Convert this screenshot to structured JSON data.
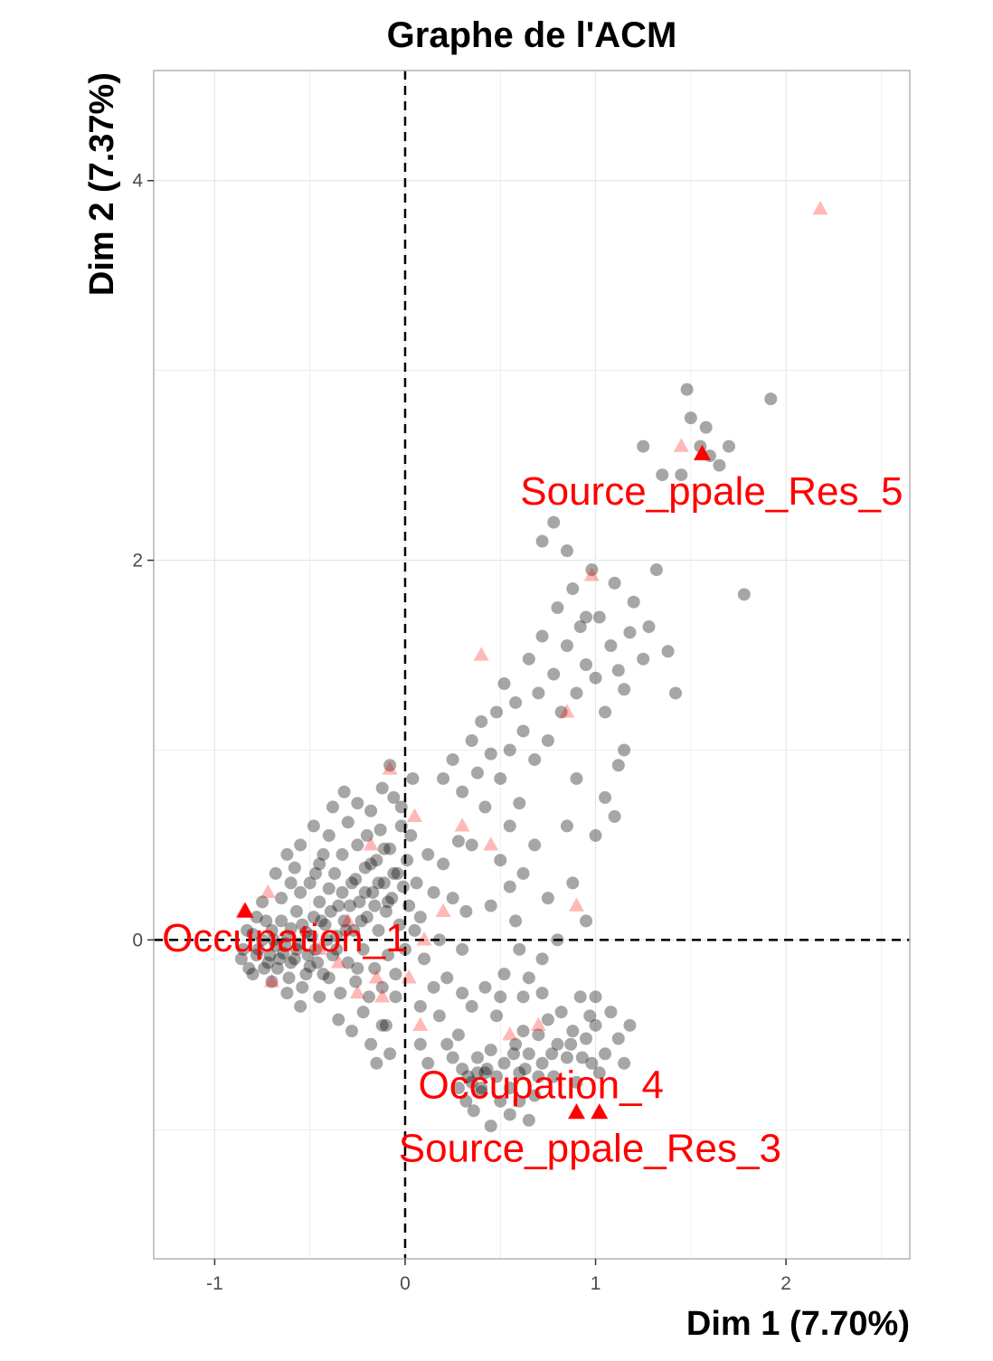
{
  "chart_data": {
    "type": "scatter",
    "title": "Graphe de l'ACM",
    "xlabel": "Dim 1 (7.70%)",
    "ylabel": "Dim 2 (7.37%)",
    "xlim": [
      -1.32,
      2.65
    ],
    "ylim": [
      -1.68,
      4.58
    ],
    "xticks": [
      -1,
      0,
      1,
      2
    ],
    "yticks": [
      0,
      2,
      4
    ],
    "grid": true,
    "reference_lines": {
      "x": 0,
      "y": 0,
      "style": "dashed"
    },
    "colors": {
      "individuals": "#000000",
      "categories": "#ff0000",
      "highlighted_categories": "#ff0000"
    },
    "individuals": [
      [
        -0.85,
        -0.05
      ],
      [
        -0.8,
        0.03
      ],
      [
        -0.78,
        -0.08
      ],
      [
        -0.75,
        0.0
      ],
      [
        -0.72,
        -0.12
      ],
      [
        -0.7,
        0.05
      ],
      [
        -0.68,
        -0.03
      ],
      [
        -0.67,
        -0.15
      ],
      [
        -0.65,
        0.1
      ],
      [
        -0.64,
        -0.07
      ],
      [
        -0.62,
        0.02
      ],
      [
        -0.61,
        -0.2
      ],
      [
        -0.6,
        0.06
      ],
      [
        -0.58,
        -0.1
      ],
      [
        -0.57,
        0.15
      ],
      [
        -0.56,
        -0.02
      ],
      [
        -0.55,
        0.25
      ],
      [
        -0.54,
        -0.25
      ],
      [
        -0.52,
        0.04
      ],
      [
        -0.5,
        0.3
      ],
      [
        -0.5,
        -0.14
      ],
      [
        -0.48,
        0.12
      ],
      [
        -0.47,
        -0.05
      ],
      [
        -0.45,
        0.4
      ],
      [
        -0.45,
        0.2
      ],
      [
        -0.43,
        -0.18
      ],
      [
        -0.42,
        0.08
      ],
      [
        -0.4,
        0.55
      ],
      [
        -0.4,
        0.27
      ],
      [
        -0.38,
        -0.08
      ],
      [
        -0.37,
        0.35
      ],
      [
        -0.36,
        0.02
      ],
      [
        -0.35,
        0.18
      ],
      [
        -0.34,
        -0.28
      ],
      [
        -0.33,
        0.45
      ],
      [
        -0.32,
        0.1
      ],
      [
        -0.3,
        0.62
      ],
      [
        -0.3,
        -0.12
      ],
      [
        -0.28,
        0.3
      ],
      [
        -0.27,
        0.05
      ],
      [
        -0.26,
        -0.22
      ],
      [
        -0.25,
        0.5
      ],
      [
        -0.24,
        0.2
      ],
      [
        -0.22,
        -0.05
      ],
      [
        -0.21,
        0.38
      ],
      [
        -0.2,
        0.12
      ],
      [
        -0.19,
        -0.3
      ],
      [
        -0.18,
        0.68
      ],
      [
        -0.17,
        0.25
      ],
      [
        -0.16,
        -0.15
      ],
      [
        -0.15,
        0.42
      ],
      [
        -0.14,
        0.05
      ],
      [
        -0.13,
        0.58
      ],
      [
        -0.12,
        -0.25
      ],
      [
        -0.11,
        0.3
      ],
      [
        -0.1,
        0.15
      ],
      [
        -0.09,
        -0.08
      ],
      [
        -0.08,
        0.48
      ],
      [
        -0.07,
        0.22
      ],
      [
        -0.06,
        0.75
      ],
      [
        -0.05,
        -0.18
      ],
      [
        -0.04,
        0.35
      ],
      [
        -0.03,
        0.08
      ],
      [
        -0.02,
        0.6
      ],
      [
        -0.01,
        0.28
      ],
      [
        0.0,
        -0.05
      ],
      [
        0.01,
        0.42
      ],
      [
        0.02,
        0.18
      ],
      [
        0.04,
        0.85
      ],
      [
        0.05,
        0.05
      ],
      [
        -0.45,
        -0.3
      ],
      [
        -0.35,
        -0.42
      ],
      [
        -0.28,
        -0.48
      ],
      [
        -0.22,
        -0.38
      ],
      [
        -0.18,
        -0.55
      ],
      [
        -0.12,
        -0.45
      ],
      [
        -0.08,
        -0.6
      ],
      [
        -0.15,
        -0.65
      ],
      [
        -0.55,
        -0.35
      ],
      [
        -0.48,
        0.6
      ],
      [
        -0.6,
        0.3
      ],
      [
        -0.65,
        0.22
      ],
      [
        -0.62,
        -0.28
      ],
      [
        -0.58,
        0.38
      ],
      [
        -0.7,
        -0.22
      ],
      [
        -0.75,
        0.2
      ],
      [
        -0.8,
        -0.18
      ],
      [
        -0.52,
        -0.18
      ],
      [
        -0.43,
        0.45
      ],
      [
        -0.38,
        0.7
      ],
      [
        -0.32,
        0.78
      ],
      [
        -0.25,
        0.72
      ],
      [
        -0.2,
        0.55
      ],
      [
        -0.12,
        0.8
      ],
      [
        -0.08,
        0.92
      ],
      [
        -0.02,
        0.7
      ],
      [
        0.03,
        0.55
      ],
      [
        0.06,
        0.3
      ],
      [
        0.08,
        0.12
      ],
      [
        0.1,
        -0.1
      ],
      [
        0.12,
        0.45
      ],
      [
        0.15,
        0.25
      ],
      [
        0.18,
        0.0
      ],
      [
        0.2,
        0.4
      ],
      [
        0.22,
        -0.2
      ],
      [
        0.25,
        0.22
      ],
      [
        0.28,
        0.52
      ],
      [
        0.3,
        -0.05
      ],
      [
        0.32,
        0.15
      ],
      [
        0.35,
        0.5
      ],
      [
        0.2,
        0.85
      ],
      [
        0.25,
        0.95
      ],
      [
        0.3,
        0.78
      ],
      [
        0.35,
        1.05
      ],
      [
        0.38,
        0.88
      ],
      [
        0.4,
        1.15
      ],
      [
        0.42,
        0.7
      ],
      [
        0.45,
        0.98
      ],
      [
        0.48,
        1.2
      ],
      [
        0.5,
        0.85
      ],
      [
        0.52,
        1.35
      ],
      [
        0.55,
        1.0
      ],
      [
        0.58,
        1.25
      ],
      [
        0.6,
        0.72
      ],
      [
        0.62,
        1.1
      ],
      [
        0.65,
        1.48
      ],
      [
        0.68,
        0.95
      ],
      [
        0.7,
        1.3
      ],
      [
        0.72,
        1.6
      ],
      [
        0.75,
        1.05
      ],
      [
        0.78,
        1.4
      ],
      [
        0.8,
        1.75
      ],
      [
        0.82,
        1.2
      ],
      [
        0.85,
        1.55
      ],
      [
        0.88,
        1.85
      ],
      [
        0.9,
        1.3
      ],
      [
        0.92,
        1.65
      ],
      [
        0.95,
        1.45
      ],
      [
        0.98,
        1.95
      ],
      [
        1.0,
        1.38
      ],
      [
        1.02,
        1.7
      ],
      [
        1.05,
        1.2
      ],
      [
        1.08,
        1.55
      ],
      [
        1.1,
        1.88
      ],
      [
        1.12,
        1.42
      ],
      [
        1.15,
        1.0
      ],
      [
        1.18,
        1.62
      ],
      [
        1.2,
        1.78
      ],
      [
        1.25,
        1.48
      ],
      [
        1.28,
        1.65
      ],
      [
        1.32,
        1.95
      ],
      [
        1.38,
        1.52
      ],
      [
        1.45,
        2.45
      ],
      [
        1.5,
        2.75
      ],
      [
        1.55,
        2.6
      ],
      [
        1.6,
        2.55
      ],
      [
        1.65,
        2.5
      ],
      [
        1.7,
        2.6
      ],
      [
        1.78,
        1.82
      ],
      [
        1.92,
        2.85
      ],
      [
        1.25,
        2.6
      ],
      [
        1.35,
        2.45
      ],
      [
        1.48,
        2.9
      ],
      [
        1.58,
        2.7
      ],
      [
        0.72,
        2.1
      ],
      [
        0.78,
        2.2
      ],
      [
        0.85,
        2.05
      ],
      [
        0.95,
        1.7
      ],
      [
        1.15,
        1.32
      ],
      [
        1.42,
        1.3
      ],
      [
        0.5,
        0.42
      ],
      [
        0.55,
        0.6
      ],
      [
        0.62,
        0.35
      ],
      [
        0.68,
        0.5
      ],
      [
        0.75,
        0.22
      ],
      [
        0.8,
        0.0
      ],
      [
        0.85,
        0.6
      ],
      [
        0.72,
        -0.1
      ],
      [
        0.65,
        -0.2
      ],
      [
        0.58,
        0.1
      ],
      [
        1.05,
        0.75
      ],
      [
        1.1,
        0.65
      ],
      [
        1.12,
        0.92
      ],
      [
        1.0,
        0.55
      ],
      [
        0.9,
        0.85
      ],
      [
        0.95,
        0.1
      ],
      [
        0.88,
        0.3
      ],
      [
        0.6,
        -0.05
      ],
      [
        0.55,
        0.28
      ],
      [
        0.45,
        0.18
      ],
      [
        0.3,
        -0.28
      ],
      [
        0.35,
        -0.35
      ],
      [
        0.42,
        -0.25
      ],
      [
        0.48,
        -0.4
      ],
      [
        0.52,
        -0.18
      ],
      [
        0.28,
        -0.5
      ],
      [
        0.22,
        -0.55
      ],
      [
        0.18,
        -0.4
      ],
      [
        0.12,
        -0.65
      ],
      [
        0.08,
        -0.55
      ],
      [
        0.3,
        -0.68
      ],
      [
        0.35,
        -0.75
      ],
      [
        0.38,
        -0.62
      ],
      [
        0.4,
        -0.8
      ],
      [
        0.42,
        -0.7
      ],
      [
        0.45,
        -0.58
      ],
      [
        0.48,
        -0.72
      ],
      [
        0.5,
        -0.85
      ],
      [
        0.52,
        -0.65
      ],
      [
        0.55,
        -0.78
      ],
      [
        0.58,
        -0.55
      ],
      [
        0.6,
        -0.7
      ],
      [
        0.62,
        -0.48
      ],
      [
        0.65,
        -0.6
      ],
      [
        0.68,
        -0.82
      ],
      [
        0.7,
        -0.5
      ],
      [
        0.72,
        -0.65
      ],
      [
        0.75,
        -0.42
      ],
      [
        0.78,
        -0.72
      ],
      [
        0.8,
        -0.55
      ],
      [
        0.82,
        -0.38
      ],
      [
        0.85,
        -0.62
      ],
      [
        0.88,
        -0.48
      ],
      [
        0.9,
        -0.75
      ],
      [
        0.92,
        -0.3
      ],
      [
        0.95,
        -0.52
      ],
      [
        0.98,
        -0.65
      ],
      [
        1.0,
        -0.45
      ],
      [
        1.02,
        -0.7
      ],
      [
        1.05,
        -0.6
      ],
      [
        1.08,
        -0.38
      ],
      [
        1.12,
        -0.52
      ],
      [
        1.15,
        -0.65
      ],
      [
        1.18,
        -0.45
      ],
      [
        0.25,
        -0.62
      ],
      [
        0.28,
        -0.78
      ],
      [
        0.32,
        -0.85
      ],
      [
        0.36,
        -0.9
      ],
      [
        0.4,
        -0.78
      ],
      [
        0.55,
        -0.92
      ],
      [
        0.6,
        -0.85
      ],
      [
        0.65,
        -0.95
      ],
      [
        0.45,
        -0.98
      ],
      [
        0.33,
        -0.72
      ],
      [
        0.38,
        -0.7
      ],
      [
        0.43,
        -0.68
      ],
      [
        0.57,
        -0.6
      ],
      [
        0.63,
        -0.68
      ],
      [
        0.7,
        -0.72
      ],
      [
        0.77,
        -0.6
      ],
      [
        0.87,
        -0.55
      ],
      [
        0.93,
        -0.62
      ],
      [
        0.97,
        -0.4
      ],
      [
        1.0,
        -0.3
      ],
      [
        0.72,
        -0.28
      ],
      [
        0.62,
        -0.3
      ],
      [
        0.5,
        -0.3
      ],
      [
        0.15,
        -0.25
      ],
      [
        0.08,
        -0.35
      ],
      [
        -0.05,
        -0.3
      ],
      [
        -0.1,
        -0.45
      ],
      [
        -0.25,
        -0.15
      ],
      [
        -0.4,
        -0.2
      ],
      [
        -0.47,
        0.35
      ],
      [
        -0.55,
        0.5
      ],
      [
        -0.62,
        0.45
      ],
      [
        -0.68,
        0.35
      ],
      [
        -0.73,
        0.1
      ],
      [
        -0.78,
        0.12
      ],
      [
        -0.83,
        0.05
      ],
      [
        -0.86,
        -0.1
      ],
      [
        -0.82,
        -0.15
      ],
      [
        -0.77,
        -0.05
      ],
      [
        -0.74,
        -0.15
      ],
      [
        -0.71,
        -0.08
      ],
      [
        -0.69,
        0.0
      ],
      [
        -0.66,
        -0.1
      ],
      [
        -0.63,
        -0.02
      ],
      [
        -0.6,
        -0.12
      ],
      [
        -0.57,
        -0.05
      ],
      [
        -0.54,
        0.08
      ],
      [
        -0.51,
        -0.08
      ],
      [
        -0.49,
        0.02
      ],
      [
        -0.46,
        -0.12
      ],
      [
        -0.44,
        0.1
      ],
      [
        -0.41,
        0.0
      ],
      [
        -0.39,
        0.15
      ],
      [
        -0.36,
        -0.05
      ],
      [
        -0.33,
        0.25
      ],
      [
        -0.31,
        0.05
      ],
      [
        -0.29,
        0.18
      ],
      [
        -0.26,
        0.32
      ],
      [
        -0.23,
        0.1
      ],
      [
        -0.21,
        0.25
      ],
      [
        -0.18,
        0.4
      ],
      [
        -0.16,
        0.18
      ],
      [
        -0.14,
        0.3
      ],
      [
        -0.11,
        0.48
      ],
      [
        -0.09,
        0.2
      ],
      [
        -0.06,
        0.35
      ]
    ],
    "categories": [
      [
        -0.85,
        0.15
      ],
      [
        -0.72,
        0.25
      ],
      [
        -0.7,
        -0.22
      ],
      [
        -0.45,
        -0.05
      ],
      [
        -0.35,
        -0.12
      ],
      [
        -0.3,
        0.1
      ],
      [
        -0.25,
        -0.28
      ],
      [
        -0.18,
        0.5
      ],
      [
        -0.15,
        -0.2
      ],
      [
        -0.12,
        -0.3
      ],
      [
        -0.08,
        0.9
      ],
      [
        0.02,
        -0.2
      ],
      [
        0.05,
        0.65
      ],
      [
        0.08,
        -0.45
      ],
      [
        0.1,
        0.0
      ],
      [
        0.2,
        0.15
      ],
      [
        0.3,
        0.6
      ],
      [
        0.4,
        1.5
      ],
      [
        0.45,
        0.5
      ],
      [
        0.55,
        -0.5
      ],
      [
        0.7,
        -0.45
      ],
      [
        0.85,
        1.2
      ],
      [
        0.9,
        0.18
      ],
      [
        0.98,
        1.92
      ],
      [
        1.45,
        2.6
      ],
      [
        2.18,
        3.85
      ]
    ],
    "highlighted_categories": [
      {
        "label": "Occupation_1",
        "x": -0.84,
        "y": 0.15
      },
      {
        "label": "Source_ppale_Res_5",
        "x": 1.56,
        "y": 2.56
      },
      {
        "label": "Occupation_4",
        "x": 0.9,
        "y": -0.91
      },
      {
        "label": "Source_ppale_Res_3",
        "x": 1.02,
        "y": -0.91
      }
    ]
  }
}
